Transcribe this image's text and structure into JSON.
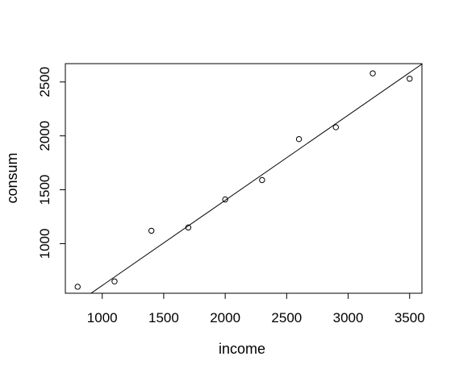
{
  "chart_data": {
    "type": "scatter",
    "title": "",
    "xlabel": "income",
    "ylabel": "consum",
    "xlim": [
      700,
      3600
    ],
    "ylim": [
      540,
      2670
    ],
    "x_ticks": [
      1000,
      1500,
      2000,
      2500,
      3000,
      3500
    ],
    "y_ticks": [
      1000,
      1500,
      2000,
      2500
    ],
    "grid": false,
    "legend": "none",
    "series": [
      {
        "x": [
          800,
          1100,
          1400,
          1700,
          2000,
          2300,
          2600,
          2900,
          3200,
          3500
        ],
        "y": [
          600,
          650,
          1120,
          1150,
          1410,
          1590,
          1970,
          2080,
          2580,
          2530
        ]
      }
    ],
    "fit_line": {
      "type": "linear",
      "intercept": -178,
      "slope": 0.79,
      "from_x": 700,
      "to_x": 3600
    },
    "colors": {
      "points": "#000000",
      "line": "#000000",
      "axes": "#000000"
    }
  }
}
